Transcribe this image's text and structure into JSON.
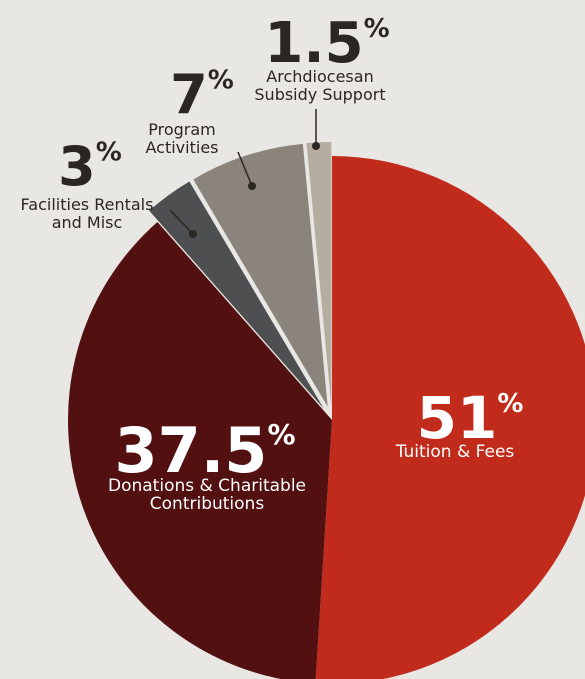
{
  "chart_data": {
    "type": "pie",
    "slices": [
      {
        "label_lines": [
          "Tuition & Fees"
        ],
        "value": 51,
        "percent_num": "51",
        "percent_sym": "%",
        "color": "#c12b1b",
        "explode": false
      },
      {
        "label_lines": [
          "Donations & Charitable",
          "Contributions"
        ],
        "value": 37.5,
        "percent_num": "37.5",
        "percent_sym": "%",
        "color": "#531010",
        "explode": false
      },
      {
        "label_lines": [
          "Facilities Rentals",
          "and Misc"
        ],
        "value": 3,
        "percent_num": "3",
        "percent_sym": "%",
        "color": "#4d4f51",
        "explode": true
      },
      {
        "label_lines": [
          "Program",
          "Activities"
        ],
        "value": 7,
        "percent_num": "7",
        "percent_sym": "%",
        "color": "#8a847c",
        "explode": true
      },
      {
        "label_lines": [
          "Archdiocesan",
          "Subsidy Support"
        ],
        "value": 1.5,
        "percent_num": "1.5",
        "percent_sym": "%",
        "color": "#b5ad9f",
        "explode": true
      }
    ],
    "start_angle_deg": 0,
    "direction": "clockwise"
  }
}
